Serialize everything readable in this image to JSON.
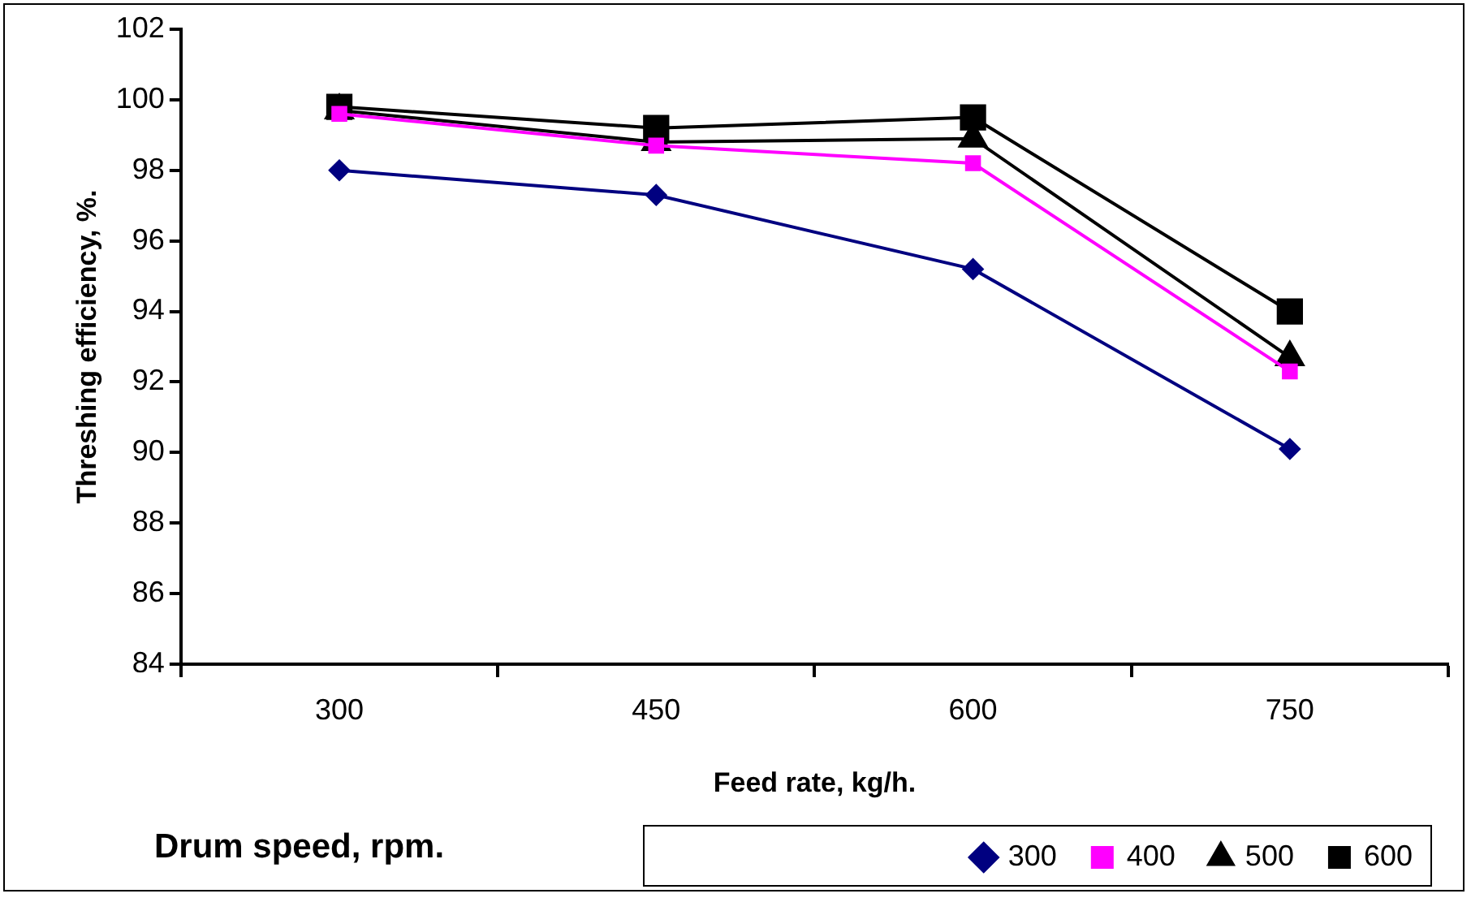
{
  "chart_data": {
    "type": "line",
    "xlabel": "Feed rate, kg/h.",
    "ylabel": "Threshing efficiency, %.",
    "legend_title": "Drum speed, rpm.",
    "legend": "bottom",
    "grid": false,
    "categories": [
      "300",
      "450",
      "600",
      "750"
    ],
    "ylim": [
      84,
      102
    ],
    "yticks": [
      84,
      86,
      88,
      90,
      92,
      94,
      96,
      98,
      100,
      102
    ],
    "series": [
      {
        "name": "300",
        "color": "#000080",
        "marker": "diamond",
        "values": [
          98.0,
          97.3,
          95.2,
          90.1
        ]
      },
      {
        "name": "400",
        "color": "#ff00ff",
        "marker": "square",
        "values": [
          99.6,
          98.7,
          98.2,
          92.3
        ]
      },
      {
        "name": "500",
        "color": "#000000",
        "marker": "triangle",
        "values": [
          99.7,
          98.8,
          98.9,
          92.7
        ]
      },
      {
        "name": "600",
        "color": "#000000",
        "marker": "square",
        "values": [
          99.8,
          99.2,
          99.5,
          94.0
        ]
      }
    ]
  }
}
